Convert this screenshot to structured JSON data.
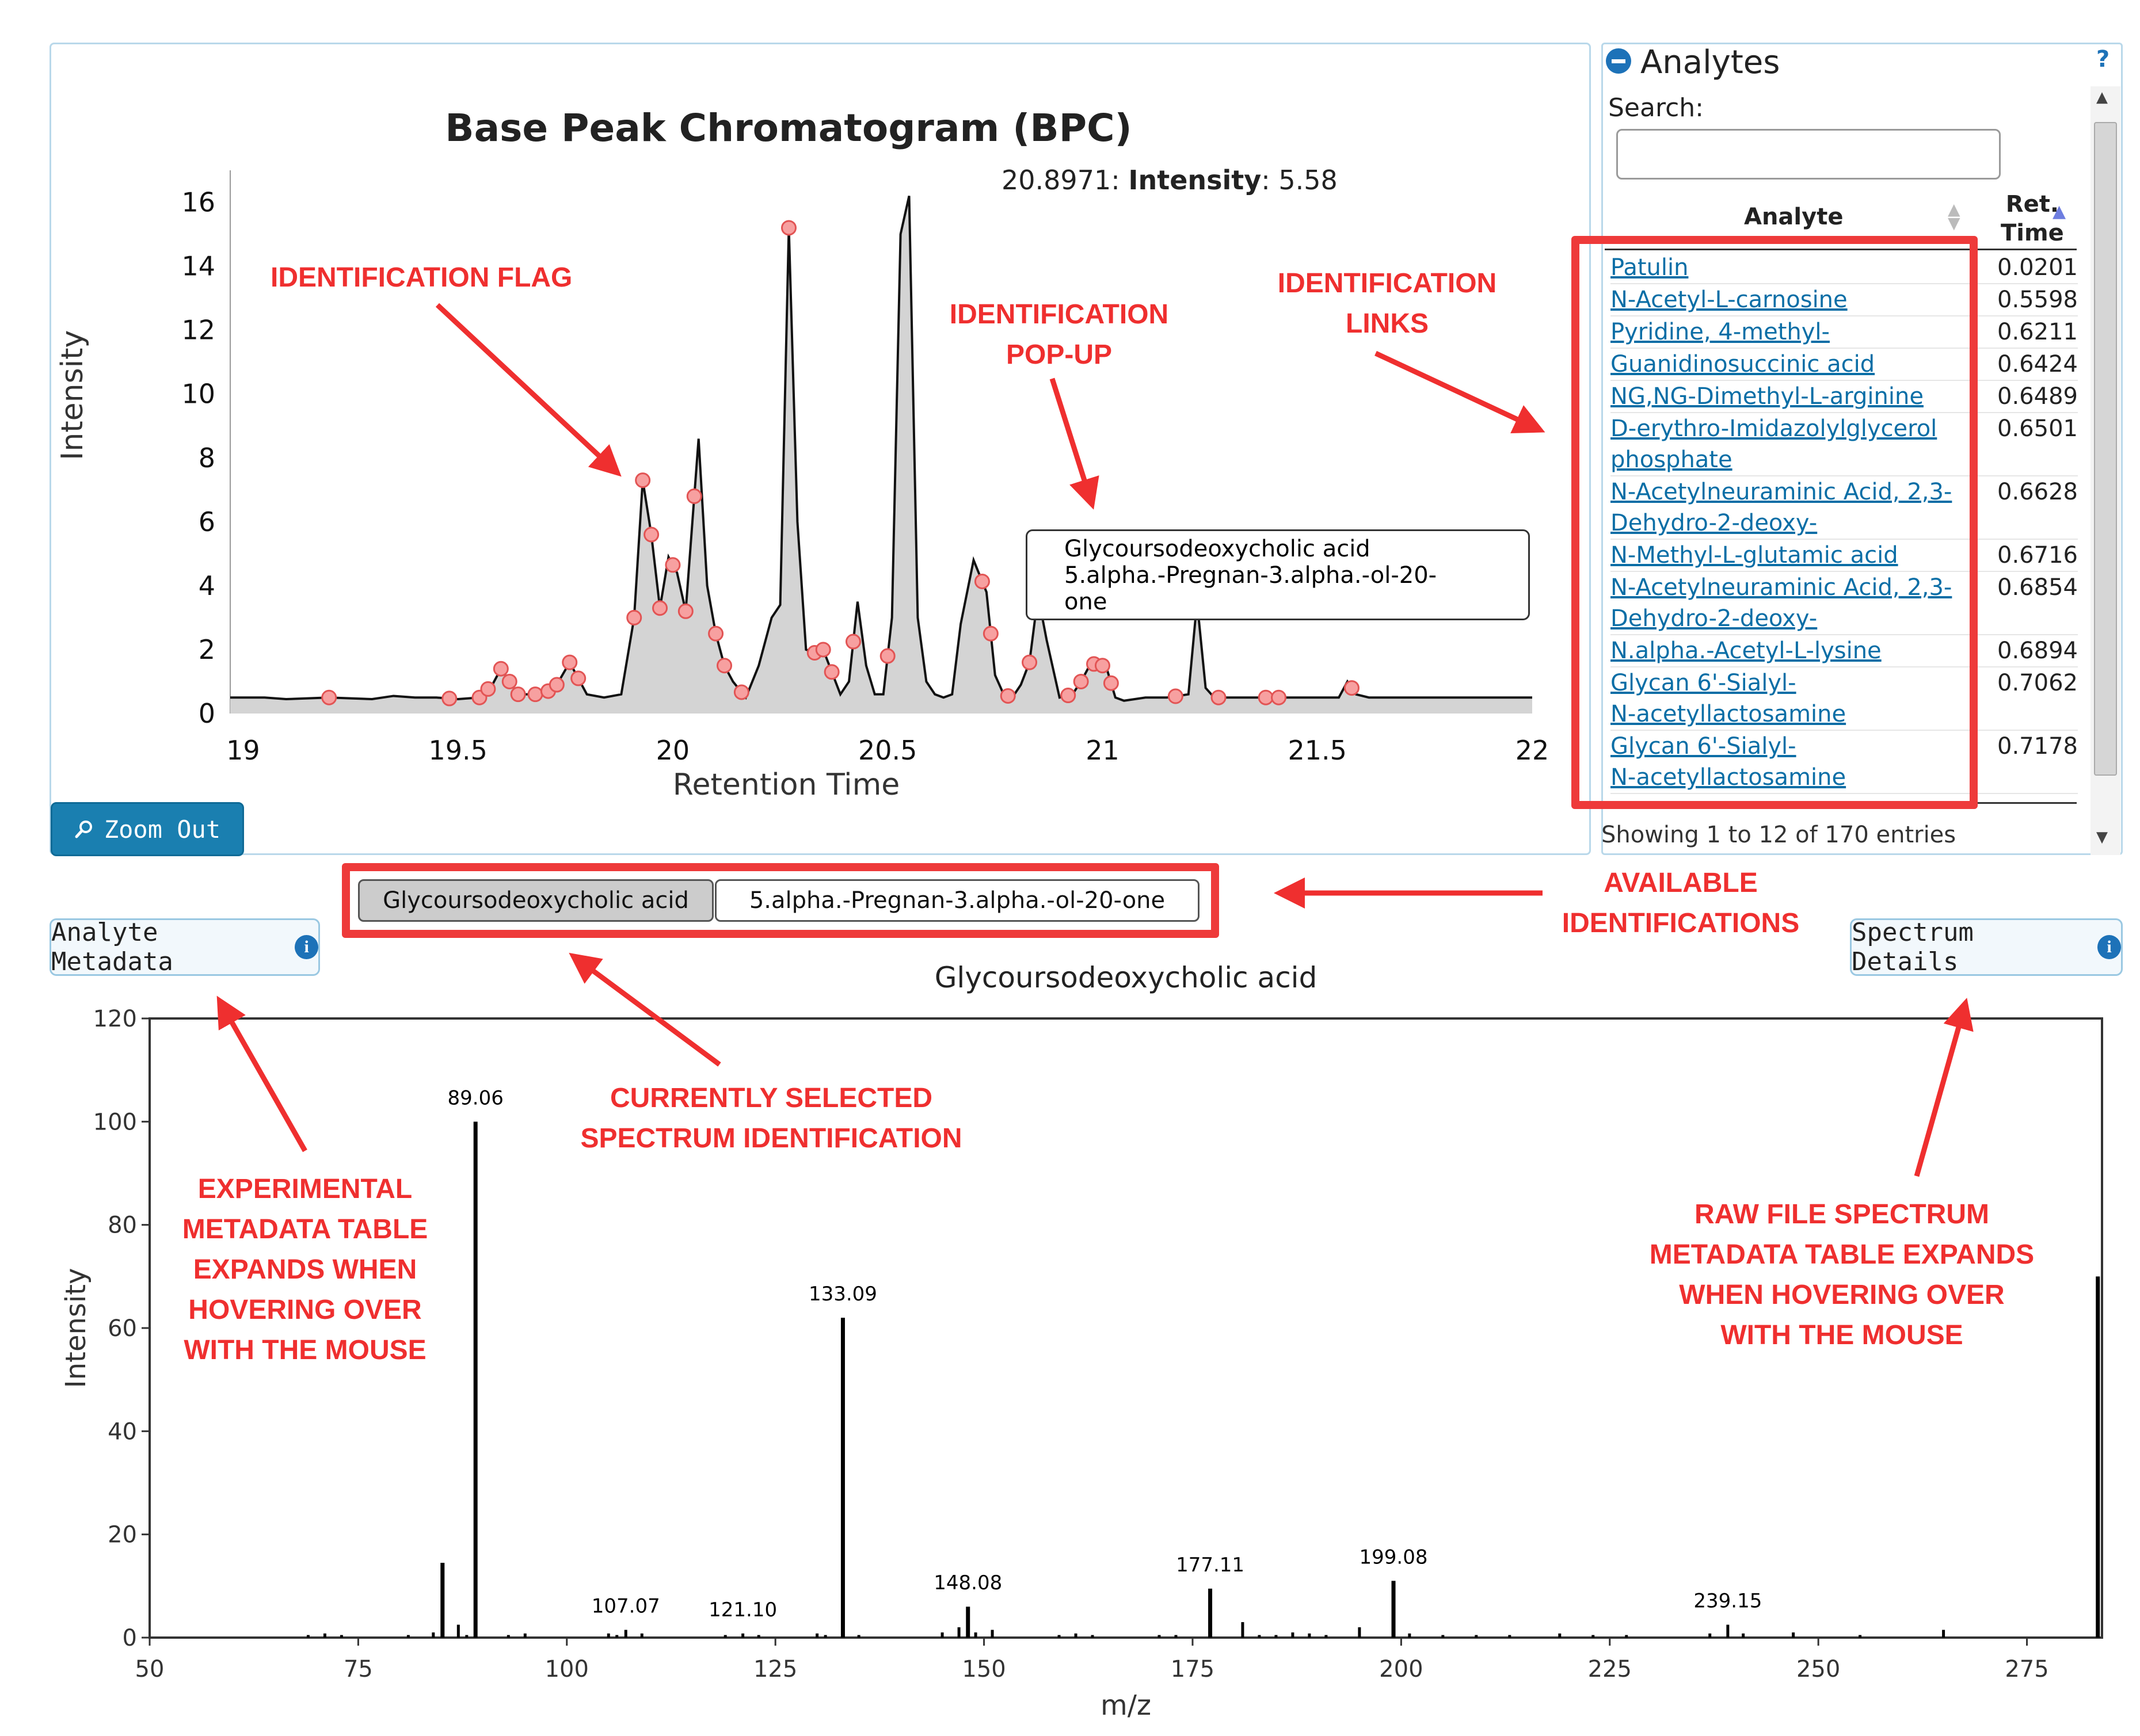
{
  "bpc": {
    "title": "Base Peak Chromatogram (BPC)",
    "hover_rt": "20.8971:",
    "hover_intensity_label": "Intensity",
    "hover_intensity_value": ": 5.58",
    "ylabel": "Intensity",
    "xlabel": "Retention Time",
    "zoom_out_label": "Zoom Out",
    "popup_line1": "Glycoursodeoxycholic acid",
    "popup_line2": "5.alpha.-Pregnan-3.alpha.-ol-20-",
    "popup_line3": "one"
  },
  "analytes": {
    "header": "Analytes",
    "help": "?",
    "search_label": "Search:",
    "col_analyte": "Analyte",
    "col_ret_line1": "Ret.",
    "col_ret_line2": "Time",
    "rows": [
      {
        "l1": "Patulin",
        "l2": "",
        "rt": "0.0201"
      },
      {
        "l1": "N-Acetyl-L-carnosine",
        "l2": "",
        "rt": "0.5598"
      },
      {
        "l1": "Pyridine, 4-methyl-",
        "l2": "",
        "rt": "0.6211"
      },
      {
        "l1": "Guanidinosuccinic acid",
        "l2": "",
        "rt": "0.6424"
      },
      {
        "l1": "NG,NG-Dimethyl-L-arginine",
        "l2": "",
        "rt": "0.6489"
      },
      {
        "l1": "D-erythro-Imidazolylglycerol",
        "l2": "phosphate",
        "rt": "0.6501"
      },
      {
        "l1": "N-Acetylneuraminic Acid, 2,3-",
        "l2": "Dehydro-2-deoxy-",
        "rt": "0.6628"
      },
      {
        "l1": "N-Methyl-L-glutamic acid",
        "l2": "",
        "rt": "0.6716"
      },
      {
        "l1": "N-Acetylneuraminic Acid, 2,3-",
        "l2": "Dehydro-2-deoxy-",
        "rt": "0.6854"
      },
      {
        "l1": "N.alpha.-Acetyl-L-lysine",
        "l2": "",
        "rt": "0.6894"
      },
      {
        "l1": "Glycan 6'-Sialyl-",
        "l2": "N-acetyllactosamine",
        "rt": "0.7062"
      },
      {
        "l1": "Glycan 6'-Sialyl-",
        "l2": "N-acetyllactosamine",
        "rt": "0.7178"
      }
    ],
    "footer": "Showing 1 to 12 of 170 entries"
  },
  "identifications": {
    "selected": "Glycoursodeoxycholic acid",
    "other": "5.alpha.-Pregnan-3.alpha.-ol-20-one"
  },
  "buttons": {
    "analyte_metadata": "Analyte Metadata",
    "spectrum_details": "Spectrum Details",
    "info": "i"
  },
  "annotations": {
    "identification_flag": "IDENTIFICATION FLAG",
    "popup_1": "IDENTIFICATION",
    "popup_2": "POP-UP",
    "links_1": "IDENTIFICATION",
    "links_2": "LINKS",
    "available_1": "AVAILABLE",
    "available_2": "IDENTIFICATIONS",
    "current_1": "CURRENTLY SELECTED",
    "current_2": "SPECTRUM IDENTIFICATION",
    "exp_1": "EXPERIMENTAL",
    "exp_2": "METADATA TABLE",
    "exp_3": "EXPANDS WHEN",
    "exp_4": "HOVERING OVER",
    "exp_5": "WITH THE MOUSE",
    "raw_1": "RAW FILE SPECTRUM",
    "raw_2": "METADATA TABLE EXPANDS",
    "raw_3": "WHEN HOVERING OVER",
    "raw_4": "WITH THE MOUSE"
  },
  "chart_data": [
    {
      "type": "area",
      "title": "Base Peak Chromatogram (BPC)",
      "xlabel": "Retention Time",
      "ylabel": "Intensity",
      "xlim": [
        18.97,
        22.0
      ],
      "ylim": [
        0,
        17
      ],
      "xticks": [
        19,
        19.5,
        20,
        20.5,
        21,
        21.5,
        22
      ],
      "yticks": [
        0,
        2,
        4,
        6,
        8,
        10,
        12,
        14,
        16
      ],
      "x": [
        18.97,
        19.05,
        19.1,
        19.2,
        19.3,
        19.35,
        19.4,
        19.45,
        19.5,
        19.55,
        19.58,
        19.6,
        19.62,
        19.64,
        19.66,
        19.7,
        19.73,
        19.76,
        19.78,
        19.8,
        19.84,
        19.88,
        19.91,
        19.93,
        19.95,
        19.97,
        19.99,
        20.01,
        20.03,
        20.05,
        20.06,
        20.08,
        20.1,
        20.12,
        20.14,
        20.17,
        20.2,
        20.23,
        20.25,
        20.27,
        20.29,
        20.31,
        20.33,
        20.35,
        20.37,
        20.39,
        20.41,
        20.43,
        20.45,
        20.47,
        20.49,
        20.51,
        20.53,
        20.55,
        20.57,
        20.59,
        20.61,
        20.63,
        20.65,
        20.67,
        20.7,
        20.73,
        20.75,
        20.77,
        20.79,
        20.81,
        20.83,
        20.85,
        20.87,
        20.9,
        20.93,
        20.95,
        20.97,
        20.99,
        21.01,
        21.03,
        21.05,
        21.1,
        21.15,
        21.2,
        21.22,
        21.24,
        21.26,
        21.28,
        21.3,
        21.35,
        21.4,
        21.45,
        21.5,
        21.55,
        21.57,
        21.59,
        21.62,
        21.7,
        21.8,
        21.9,
        22.0
      ],
      "y": [
        0.5,
        0.5,
        0.45,
        0.5,
        0.45,
        0.55,
        0.5,
        0.5,
        0.45,
        0.5,
        0.9,
        1.4,
        1.0,
        0.6,
        0.6,
        0.6,
        0.9,
        1.6,
        1.1,
        0.6,
        0.5,
        0.6,
        3.0,
        7.3,
        5.6,
        3.3,
        4.9,
        4.4,
        3.2,
        6.8,
        8.6,
        4.0,
        2.5,
        1.5,
        1.0,
        0.5,
        1.5,
        3.0,
        3.4,
        15.2,
        6.0,
        2.0,
        1.9,
        2.0,
        1.3,
        0.6,
        1.0,
        3.5,
        1.5,
        0.6,
        0.6,
        3.0,
        15.0,
        16.2,
        3.0,
        1.0,
        0.6,
        0.5,
        0.6,
        2.8,
        4.8,
        3.8,
        1.2,
        0.6,
        0.5,
        0.9,
        1.6,
        3.7,
        2.3,
        0.5,
        0.6,
        1.0,
        1.5,
        1.6,
        1.4,
        0.5,
        0.4,
        0.5,
        0.5,
        0.6,
        3.5,
        0.8,
        0.5,
        0.5,
        0.5,
        0.5,
        0.5,
        0.5,
        0.5,
        0.5,
        1.0,
        0.6,
        0.5,
        0.5,
        0.5,
        0.5,
        0.5
      ],
      "flags_x": [
        19.2,
        19.48,
        19.55,
        19.57,
        19.6,
        19.62,
        19.64,
        19.68,
        19.71,
        19.73,
        19.76,
        19.78,
        19.91,
        19.93,
        19.95,
        19.97,
        20.0,
        20.03,
        20.05,
        20.1,
        20.12,
        20.16,
        20.27,
        20.33,
        20.35,
        20.37,
        20.42,
        20.5,
        20.72,
        20.74,
        20.78,
        20.83,
        20.92,
        20.95,
        20.98,
        21.0,
        21.02,
        21.17,
        21.27,
        21.38,
        21.41,
        21.58
      ],
      "flag_labels": [],
      "hover_point": {
        "x": 20.8971,
        "intensity": 5.58
      }
    },
    {
      "type": "bar",
      "title": "Glycoursodeoxycholic acid",
      "xlabel": "m/z",
      "ylabel": "Intensity",
      "xlim": [
        50,
        284
      ],
      "ylim": [
        0,
        120
      ],
      "xticks": [
        50,
        75,
        100,
        125,
        150,
        175,
        200,
        225,
        250,
        275
      ],
      "yticks": [
        0,
        20,
        40,
        60,
        80,
        100,
        120
      ],
      "peaks": [
        {
          "mz": 69,
          "i": 0.5
        },
        {
          "mz": 71,
          "i": 0.8
        },
        {
          "mz": 73,
          "i": 0.5
        },
        {
          "mz": 81,
          "i": 0.5
        },
        {
          "mz": 84,
          "i": 1
        },
        {
          "mz": 85.1,
          "i": 14.5
        },
        {
          "mz": 87,
          "i": 2.5
        },
        {
          "mz": 88,
          "i": 0.5
        },
        {
          "mz": 89.06,
          "i": 100,
          "label": "89.06"
        },
        {
          "mz": 93,
          "i": 0.5
        },
        {
          "mz": 95,
          "i": 0.8
        },
        {
          "mz": 105,
          "i": 0.8
        },
        {
          "mz": 106,
          "i": 0.5
        },
        {
          "mz": 107.07,
          "i": 1.5,
          "label": "107.07"
        },
        {
          "mz": 109,
          "i": 0.8
        },
        {
          "mz": 119,
          "i": 0.5
        },
        {
          "mz": 121.1,
          "i": 0.8,
          "label": "121.10"
        },
        {
          "mz": 123,
          "i": 0.5
        },
        {
          "mz": 130,
          "i": 0.8
        },
        {
          "mz": 131,
          "i": 0.5
        },
        {
          "mz": 133.09,
          "i": 62,
          "label": "133.09"
        },
        {
          "mz": 135,
          "i": 0.5
        },
        {
          "mz": 145,
          "i": 1
        },
        {
          "mz": 147,
          "i": 2
        },
        {
          "mz": 148.08,
          "i": 6,
          "label": "148.08"
        },
        {
          "mz": 149,
          "i": 1
        },
        {
          "mz": 151,
          "i": 1.5
        },
        {
          "mz": 159,
          "i": 0.5
        },
        {
          "mz": 161,
          "i": 0.8
        },
        {
          "mz": 163,
          "i": 0.5
        },
        {
          "mz": 171,
          "i": 0.5
        },
        {
          "mz": 173,
          "i": 0.5
        },
        {
          "mz": 177.11,
          "i": 9.5,
          "label": "177.11"
        },
        {
          "mz": 181,
          "i": 3
        },
        {
          "mz": 183,
          "i": 0.5
        },
        {
          "mz": 185,
          "i": 0.5
        },
        {
          "mz": 187,
          "i": 1
        },
        {
          "mz": 189,
          "i": 0.8
        },
        {
          "mz": 191,
          "i": 0.5
        },
        {
          "mz": 195,
          "i": 2
        },
        {
          "mz": 199.08,
          "i": 11,
          "label": "199.08"
        },
        {
          "mz": 201,
          "i": 0.8
        },
        {
          "mz": 205,
          "i": 0.5
        },
        {
          "mz": 209,
          "i": 0.5
        },
        {
          "mz": 213,
          "i": 0.5
        },
        {
          "mz": 219,
          "i": 0.8
        },
        {
          "mz": 223,
          "i": 0.5
        },
        {
          "mz": 227,
          "i": 0.5
        },
        {
          "mz": 237,
          "i": 0.8
        },
        {
          "mz": 239.15,
          "i": 2.5,
          "label": "239.15"
        },
        {
          "mz": 241,
          "i": 0.8
        },
        {
          "mz": 247,
          "i": 1
        },
        {
          "mz": 255,
          "i": 0.5
        },
        {
          "mz": 265,
          "i": 1.5
        },
        {
          "mz": 283.5,
          "i": 70
        }
      ]
    }
  ]
}
